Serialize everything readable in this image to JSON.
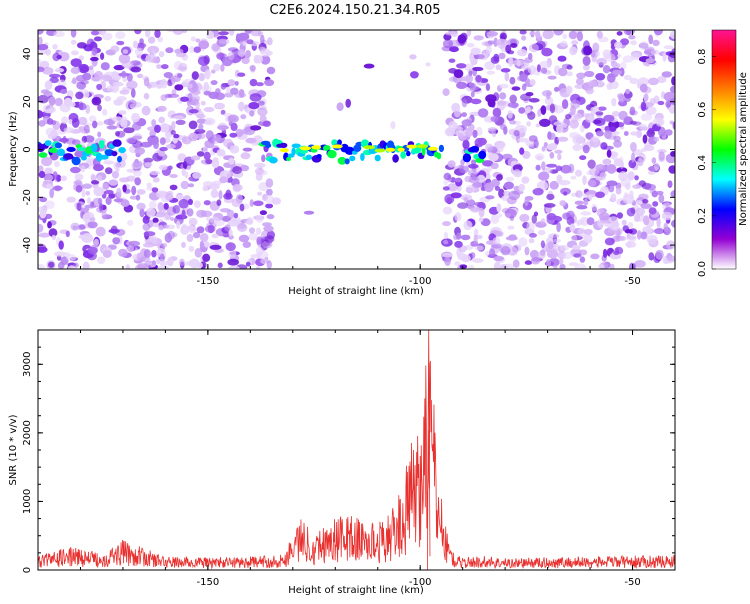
{
  "title": "C2E6.2024.150.21.34.R05",
  "chart_data": [
    {
      "type": "heatmap",
      "xlabel": "Height of straight line (km)",
      "ylabel": "Frequency (Hz)",
      "xlim": [
        -190,
        -40
      ],
      "ylim": [
        -50,
        50
      ],
      "xticks": [
        -150,
        -100,
        -50
      ],
      "xtick_labels": [
        "-150",
        "-100",
        "-50"
      ],
      "yticks": [
        -40,
        -20,
        0,
        20,
        40
      ],
      "ytick_labels": [
        "-40",
        "-20",
        "0",
        "20",
        "40"
      ],
      "colorbar": {
        "label": "Normalized spectral amplitude",
        "range": [
          0,
          0.9
        ],
        "ticks": [
          0.0,
          0.2,
          0.4,
          0.6,
          0.8
        ],
        "tick_labels": [
          "0.0",
          "0.2",
          "0.4",
          "0.6",
          "0.8"
        ],
        "colors": [
          "#ffffff",
          "#9400d3",
          "#0000ff",
          "#00ffff",
          "#00ff00",
          "#ffff00",
          "#ff7f00",
          "#ff0000",
          "#ff1493"
        ]
      },
      "empty_regions": [
        [
          -135,
          -94
        ]
      ],
      "signal_band": {
        "frequency": [
          -5,
          3
        ],
        "segments": [
          [
            -190,
            -170
          ],
          [
            -137,
            -95
          ],
          [
            -89,
            -85
          ]
        ],
        "peak_x": [
          -122,
          -115
        ]
      }
    },
    {
      "type": "line",
      "xlabel": "Height of straight line (km)",
      "ylabel": "SNR (10 * v/v)",
      "xlim": [
        -190,
        -40
      ],
      "ylim": [
        0,
        3500
      ],
      "xticks": [
        -150,
        -100,
        -50
      ],
      "xtick_labels": [
        "-150",
        "-100",
        "-50"
      ],
      "yticks": [
        0,
        1000,
        2000,
        3000
      ],
      "ytick_labels": [
        "0",
        "1000",
        "2000",
        "3000"
      ],
      "line_color": "#e8302e",
      "grid": false,
      "series_points": {
        "x": [
          -190,
          -182,
          -175,
          -170,
          -160,
          -150,
          -140,
          -132,
          -130,
          -128,
          -125,
          -120,
          -117,
          -114,
          -110,
          -106,
          -104,
          -102,
          -100,
          -98,
          -97,
          -96,
          -94,
          -92,
          -90,
          -85,
          -80,
          -70,
          -60,
          -50,
          -40
        ],
        "y": [
          200,
          310,
          230,
          400,
          180,
          170,
          180,
          210,
          560,
          700,
          520,
          700,
          760,
          680,
          620,
          850,
          1200,
          1700,
          2000,
          3500,
          2400,
          1600,
          600,
          200,
          170,
          190,
          160,
          170,
          180,
          190,
          200
        ]
      }
    }
  ]
}
